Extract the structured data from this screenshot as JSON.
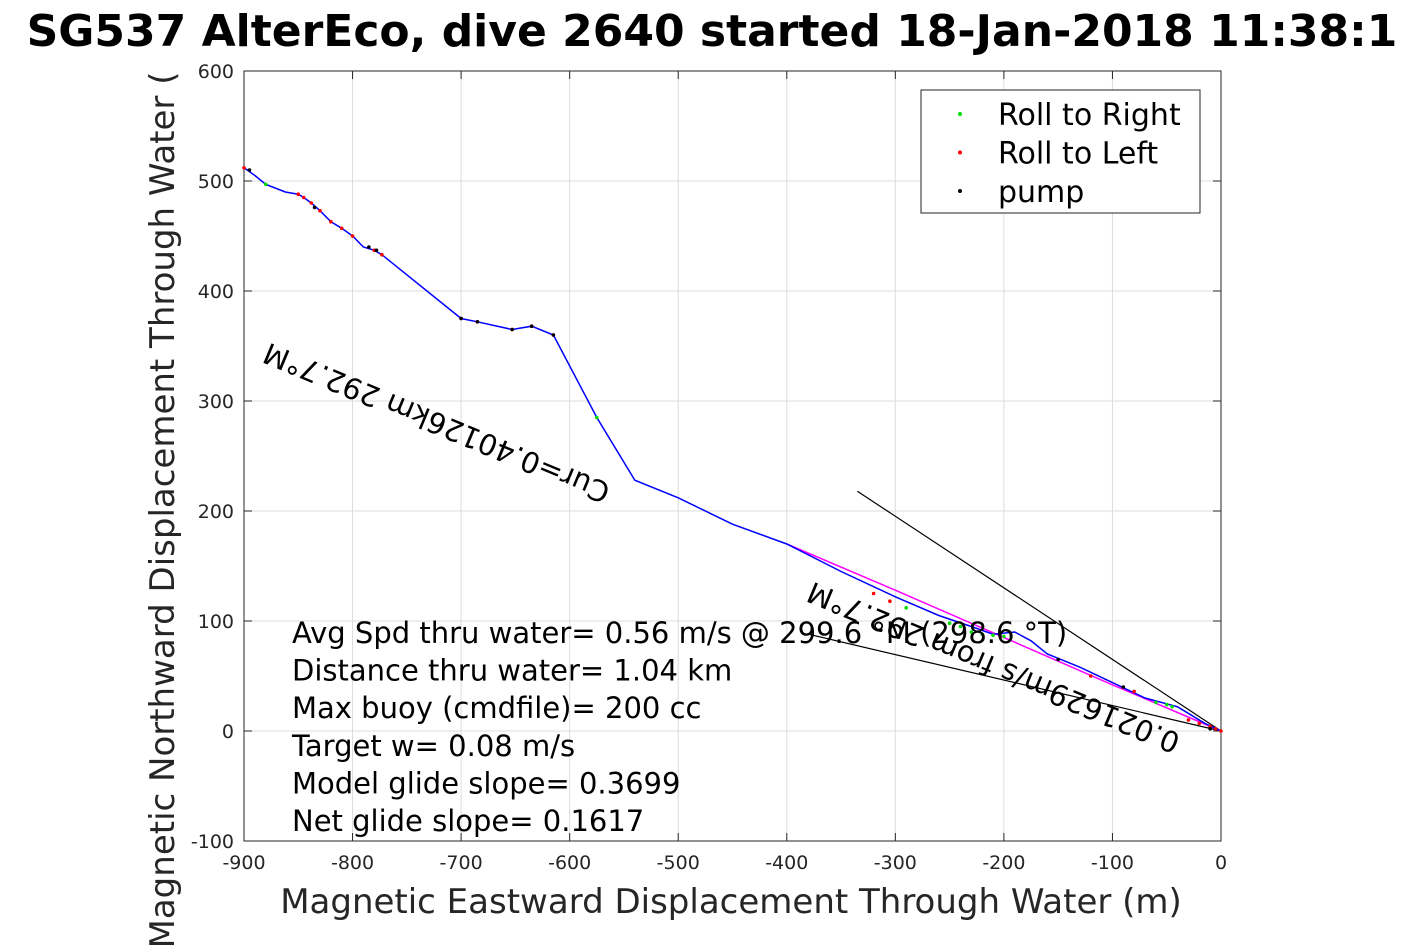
{
  "chart_data": {
    "type": "line",
    "title": "SG537 AlterEco, dive 2640 started 18-Jan-2018 11:38:1",
    "xlabel": "Magnetic Eastward Displacement Through Water (m)",
    "ylabel": "Magnetic Northward Displacement Through Water (",
    "xlim": [
      -900,
      0
    ],
    "ylim": [
      -100,
      600
    ],
    "x_ticks": [
      -900,
      -800,
      -700,
      -600,
      -500,
      -400,
      -300,
      -200,
      -100,
      0
    ],
    "y_ticks": [
      -100,
      0,
      100,
      200,
      300,
      400,
      500,
      600
    ],
    "grid": true,
    "legend_position": "top-right",
    "legend": [
      {
        "name": "Roll to Right",
        "color": "#00dd00"
      },
      {
        "name": "Roll to Left",
        "color": "#ff0000"
      },
      {
        "name": "pump",
        "color": "#000000"
      }
    ],
    "track": {
      "color": "#0000ff",
      "x": [
        -900,
        -890,
        -880,
        -862,
        -850,
        -845,
        -838,
        -830,
        -820,
        -810,
        -800,
        -790,
        -780,
        -773,
        -700,
        -685,
        -653,
        -635,
        -615,
        -575,
        -540,
        -500,
        -450,
        -400,
        -350,
        -300,
        -260,
        -230,
        -210,
        -190,
        -175,
        -160,
        -130,
        -100,
        -70,
        -40,
        -15,
        0
      ],
      "y": [
        512,
        505,
        497,
        490,
        488,
        485,
        480,
        473,
        463,
        457,
        450,
        440,
        437,
        433,
        375,
        372,
        365,
        368,
        360,
        285,
        228,
        212,
        188,
        170,
        145,
        122,
        105,
        95,
        88,
        90,
        82,
        70,
        58,
        44,
        30,
        22,
        7,
        0
      ]
    },
    "model_track": {
      "color": "#ff00ff",
      "x": [
        -400,
        -300,
        -200,
        -100,
        0
      ],
      "y": [
        170,
        128,
        85,
        42,
        0
      ]
    },
    "roll_right": {
      "x": [
        -880,
        -575,
        -290,
        -250,
        -240,
        -230,
        -220,
        -210,
        -200,
        -60,
        -50,
        -45
      ],
      "y": [
        497,
        285,
        112,
        98,
        95,
        90,
        88,
        87,
        86,
        26,
        24,
        22
      ]
    },
    "roll_left": {
      "x": [
        -900,
        -850,
        -845,
        -838,
        -830,
        -820,
        -810,
        -800,
        -780,
        -773,
        -700,
        -685,
        -653,
        -635,
        -615,
        -320,
        -305,
        -120,
        -80,
        -30,
        -20,
        -10,
        -5,
        0
      ],
      "y": [
        512,
        488,
        485,
        480,
        473,
        463,
        457,
        450,
        437,
        433,
        375,
        372,
        365,
        368,
        360,
        125,
        118,
        50,
        36,
        10,
        7,
        4,
        2,
        0
      ]
    },
    "pump": {
      "x": [
        -895,
        -835,
        -785,
        -778,
        -700,
        -685,
        -653,
        -635,
        -615,
        -150,
        -90,
        -10
      ],
      "y": [
        510,
        476,
        440,
        437,
        375,
        372,
        365,
        368,
        360,
        65,
        40,
        2
      ]
    },
    "direction_lines": [
      {
        "x": [
          0,
          -335
        ],
        "y": [
          0,
          218
        ]
      },
      {
        "x": [
          0,
          -380
        ],
        "y": [
          0,
          88
        ]
      }
    ],
    "annotations": [
      "Avg Spd thru water=  0.56 m/s @ 299.6 °M (298.6 °T)",
      "Distance thru water=  1.04 km",
      "Max buoy (cmdfile)= 200 cc",
      "Target w= 0.08 m/s",
      "Model glide slope= 0.3699",
      "Net glide slope= 0.1617"
    ],
    "rotated_annotations": [
      "0.021629m/s from 292.7°M",
      "Cur=0.40126km 292.7°M"
    ]
  }
}
